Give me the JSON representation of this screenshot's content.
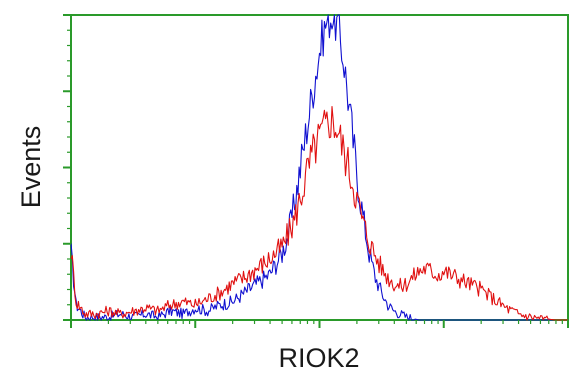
{
  "chart_data": {
    "type": "line",
    "xlabel": "RIOK2",
    "ylabel": "Events",
    "xscale": "log",
    "xlim": [
      1,
      10000
    ],
    "ylim": [
      0,
      100
    ],
    "grid": false,
    "legend": "none",
    "axis_color": "#2a9a2a",
    "series": [
      {
        "color": "#1010d0",
        "x": [
          1,
          1.1,
          1.3,
          1.6,
          2,
          2.5,
          3.2,
          4,
          5,
          6.3,
          8,
          10,
          12.6,
          15.8,
          20,
          25,
          31.6,
          39.8,
          50,
          56,
          63,
          70,
          79,
          89,
          100,
          112,
          126,
          141,
          158,
          178,
          200,
          224,
          251,
          282,
          316,
          355,
          398,
          447,
          501,
          562,
          631,
          708,
          794,
          891,
          1000,
          1259,
          1585,
          1995,
          2512,
          3162,
          3981,
          5012,
          6310,
          7943,
          10000
        ],
        "y": [
          22,
          5,
          1,
          1,
          1,
          2,
          1,
          2,
          1,
          3,
          2,
          4,
          3,
          5,
          6,
          9,
          12,
          15,
          22,
          28,
          38,
          50,
          63,
          76,
          88,
          97,
          100,
          96,
          84,
          66,
          48,
          34,
          22,
          14,
          9,
          5,
          3,
          2,
          1,
          0.5,
          0,
          0,
          0,
          0,
          0,
          0,
          0,
          0,
          0,
          0,
          0,
          0,
          0,
          0,
          0
        ]
      },
      {
        "color": "#e01010",
        "x": [
          1,
          1.1,
          1.3,
          1.6,
          2,
          2.5,
          3.2,
          4,
          5,
          6.3,
          8,
          10,
          12.6,
          15.8,
          20,
          25,
          31.6,
          39.8,
          50,
          56,
          63,
          70,
          79,
          89,
          100,
          112,
          126,
          141,
          158,
          178,
          200,
          224,
          251,
          282,
          316,
          355,
          398,
          447,
          501,
          562,
          631,
          708,
          794,
          891,
          1000,
          1259,
          1585,
          1995,
          2512,
          3162,
          3981,
          5012,
          6310,
          7943,
          10000
        ],
        "y": [
          23,
          6,
          2,
          2,
          3,
          2,
          3,
          4,
          3,
          5,
          6,
          5,
          7,
          9,
          12,
          14,
          17,
          20,
          24,
          28,
          33,
          40,
          48,
          55,
          60,
          64,
          66,
          62,
          55,
          48,
          40,
          32,
          26,
          21,
          17,
          14,
          12,
          11,
          12,
          14,
          16,
          17,
          16,
          15,
          16,
          14,
          12,
          10,
          7,
          4,
          2,
          1,
          0.5,
          0,
          0
        ]
      }
    ]
  }
}
